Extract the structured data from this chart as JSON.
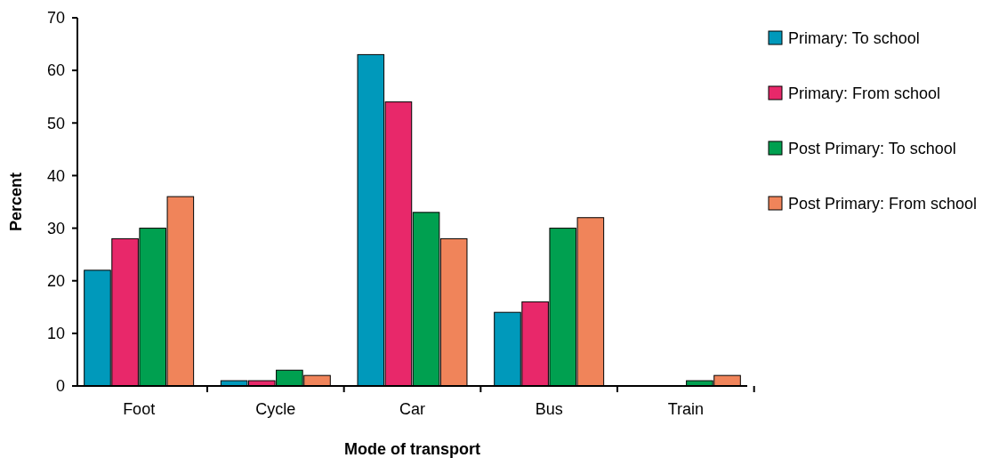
{
  "chart_data": {
    "type": "bar",
    "xlabel": "Mode of transport",
    "ylabel": "Percent",
    "categories": [
      "Foot",
      "Cycle",
      "Car",
      "Bus",
      "Train"
    ],
    "series": [
      {
        "name": "Primary: To school",
        "color": "#0099bb",
        "values": [
          22,
          1,
          63,
          14,
          0
        ]
      },
      {
        "name": "Primary: From school",
        "color": "#e8286a",
        "values": [
          28,
          1,
          54,
          16,
          0
        ]
      },
      {
        "name": "Post Primary: To school",
        "color": "#00a050",
        "values": [
          30,
          3,
          33,
          30,
          1
        ]
      },
      {
        "name": "Post Primary: From school",
        "color": "#f0845a",
        "values": [
          36,
          2,
          28,
          32,
          2
        ]
      }
    ],
    "ylim": [
      0,
      70
    ],
    "yticks": [
      0,
      10,
      20,
      30,
      40,
      50,
      60,
      70
    ],
    "grid": false,
    "legend": "top right"
  }
}
